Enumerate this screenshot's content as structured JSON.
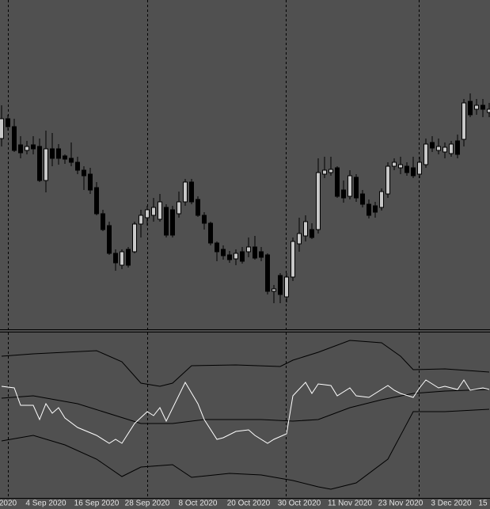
{
  "chart_data": [
    {
      "type": "candlestick",
      "categories": [
        null,
        "2020",
        null,
        null,
        null,
        null,
        null,
        "4 Sep 2020",
        null,
        null,
        null,
        null,
        null,
        null,
        null,
        "16 Sep 2020",
        null,
        null,
        null,
        null,
        null,
        null,
        null,
        "28 Sep 2020",
        null,
        null,
        null,
        null,
        null,
        null,
        null,
        "8 Oct 2020",
        null,
        null,
        null,
        null,
        null,
        null,
        null,
        "20 Oct 2020",
        null,
        null,
        null,
        null,
        null,
        null,
        null,
        "30 Oct 2020",
        null,
        null,
        null,
        null,
        null,
        null,
        null,
        "11 Nov 2020",
        null,
        null,
        null,
        null,
        null,
        null,
        null,
        "23 Nov 2020",
        null,
        null,
        null,
        null,
        null,
        null,
        null,
        "3 Dec 2020",
        null,
        null,
        null,
        null,
        "15",
        null
      ],
      "open": [
        240,
        265,
        255,
        232,
        225,
        232,
        230,
        187,
        227,
        227,
        218,
        215,
        210,
        200,
        195,
        178,
        145,
        130,
        95,
        80,
        100,
        97,
        132,
        140,
        143,
        138,
        153,
        150,
        145,
        160,
        185,
        163,
        143,
        133,
        108,
        100,
        93,
        88,
        97,
        97,
        103,
        97,
        93,
        47,
        67,
        40,
        65,
        107,
        117,
        125,
        125,
        195,
        197,
        203,
        175,
        167,
        191,
        170,
        157,
        155,
        153,
        170,
        205,
        203,
        205,
        203,
        195,
        207,
        235,
        225,
        223,
        221,
        237,
        239,
        287,
        277,
        282,
        273
      ],
      "high": [
        282,
        270,
        265,
        243,
        237,
        243,
        240,
        250,
        247,
        233,
        220,
        235,
        217,
        205,
        203,
        185,
        150,
        135,
        100,
        100,
        103,
        135,
        150,
        155,
        165,
        170,
        157,
        155,
        173,
        189,
        189,
        167,
        147,
        135,
        110,
        105,
        98,
        100,
        103,
        115,
        117,
        103,
        95,
        55,
        70,
        70,
        115,
        140,
        143,
        133,
        215,
        217,
        217,
        205,
        187,
        200,
        195,
        175,
        163,
        160,
        177,
        210,
        215,
        217,
        210,
        217,
        217,
        240,
        243,
        240,
        235,
        237,
        245,
        290,
        297,
        290,
        290,
        285
      ],
      "low": [
        230,
        250,
        223,
        215,
        220,
        220,
        185,
        172,
        205,
        207,
        208,
        205,
        195,
        175,
        170,
        143,
        123,
        93,
        73,
        75,
        77,
        95,
        115,
        130,
        135,
        135,
        115,
        115,
        140,
        155,
        157,
        141,
        125,
        105,
        85,
        87,
        83,
        80,
        82,
        90,
        87,
        85,
        43,
        32,
        32,
        33,
        60,
        97,
        110,
        113,
        120,
        190,
        193,
        165,
        159,
        163,
        160,
        153,
        139,
        140,
        149,
        165,
        200,
        195,
        193,
        190,
        190,
        203,
        223,
        220,
        215,
        217,
        215,
        230,
        267,
        270,
        267,
        267
      ],
      "close": [
        265,
        255,
        225,
        222,
        230,
        227,
        187,
        227,
        215,
        215,
        214,
        210,
        200,
        193,
        175,
        145,
        125,
        95,
        83,
        97,
        80,
        132,
        143,
        150,
        153,
        160,
        118,
        118,
        160,
        185,
        160,
        143,
        133,
        108,
        97,
        92,
        87,
        95,
        85,
        103,
        89,
        90,
        47,
        50,
        43,
        65,
        110,
        120,
        135,
        115,
        197,
        200,
        201,
        167,
        165,
        193,
        165,
        157,
        143,
        147,
        173,
        205,
        210,
        207,
        197,
        193,
        210,
        233,
        228,
        230,
        229,
        233,
        220,
        285,
        270,
        282,
        277,
        277
      ],
      "up_color": "#c8c8c8",
      "down_color": "#000000",
      "wick_color": "#000000",
      "ylim": [
        0,
        415
      ]
    },
    {
      "type": "line",
      "xlim": [
        -0.25,
        77.125
      ],
      "ylim": [
        0,
        208
      ],
      "series": [
        {
          "color": "#000000",
          "x": [
            0,
            5,
            15,
            19,
            22,
            25,
            27,
            30,
            37,
            44,
            46,
            50,
            55,
            60,
            63,
            65,
            70,
            77
          ],
          "values": [
            178,
            181,
            185,
            171,
            144,
            140,
            144,
            166,
            167,
            165,
            173,
            183,
            198,
            195,
            178,
            161,
            162,
            158
          ]
        },
        {
          "color": "#000000",
          "x": [
            0,
            5,
            12,
            18,
            22,
            27,
            32,
            41,
            46,
            50,
            55,
            60,
            65,
            70,
            77
          ],
          "values": [
            125,
            128,
            118,
            103,
            93,
            93,
            98,
            98,
            96,
            98,
            113,
            123,
            131,
            134,
            136
          ]
        },
        {
          "color": "#000000",
          "x": [
            0,
            5,
            10,
            15,
            19,
            22,
            27,
            30,
            36,
            41,
            46,
            50,
            52,
            56,
            61,
            65,
            70,
            77
          ],
          "values": [
            71,
            78,
            66,
            48,
            26,
            38,
            41,
            25,
            30,
            28,
            21,
            13,
            10,
            18,
            48,
            108,
            108,
            111
          ]
        },
        {
          "color": "#ffffff",
          "x": [
            0,
            2,
            3,
            5,
            6,
            7,
            8,
            9,
            10,
            12,
            15,
            17,
            18,
            19,
            21,
            23,
            24,
            25,
            26,
            29,
            31,
            32,
            34,
            35,
            37,
            39,
            40,
            42,
            43,
            45,
            46,
            48,
            49,
            50,
            52,
            53,
            55,
            56,
            58,
            61,
            62,
            63,
            65,
            66,
            67,
            69,
            70,
            72,
            73,
            74,
            76,
            77
          ],
          "values": [
            140,
            138,
            116,
            116,
            98,
            118,
            106,
            113,
            100,
            88,
            78,
            68,
            73,
            68,
            93,
            108,
            103,
            113,
            96,
            145,
            118,
            98,
            73,
            75,
            83,
            85,
            78,
            68,
            73,
            80,
            128,
            145,
            131,
            143,
            141,
            128,
            138,
            128,
            126,
            141,
            135,
            131,
            126,
            138,
            148,
            138,
            140,
            136,
            148,
            135,
            138,
            136
          ]
        }
      ]
    }
  ]
}
